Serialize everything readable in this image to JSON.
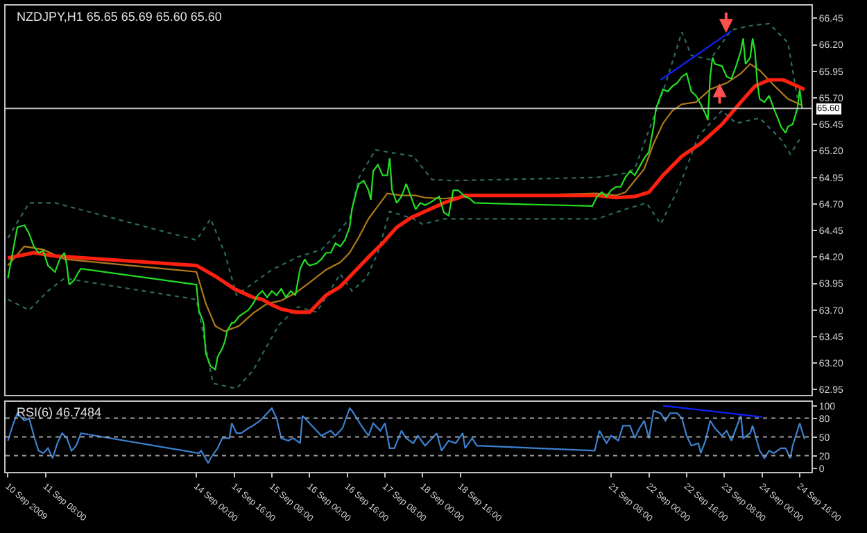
{
  "chart_data": [
    {
      "type": "line",
      "title": "NZDJPY,H1 65.65 65.69 65.60 65.60",
      "xlim": [
        "2009-09-10T15:00",
        "2009-09-24T21:00"
      ],
      "ylim": [
        62.9,
        66.57
      ],
      "yticks": [
        62.95,
        {
          "value": 63.2,
          "label": "63.20"
        },
        63.45,
        {
          "value": 63.7,
          "label": "63.70"
        },
        63.95,
        {
          "value": 64.2,
          "label": "64.20"
        },
        64.45,
        {
          "value": 64.7,
          "label": "64.70"
        },
        64.95,
        {
          "value": 65.2,
          "label": "65.20"
        },
        65.45,
        {
          "value": 65.7,
          "label": "65.70"
        },
        65.95,
        {
          "value": 66.2,
          "label": "66.20"
        },
        66.45
      ],
      "tick_labels": "y",
      "grid": false,
      "marker": "none",
      "ref_lines": [
        {
          "axis": "y",
          "value": 65.6,
          "label": "65.60",
          "color": "#c0c0c0",
          "line_style": "solid"
        }
      ],
      "series": [
        {
          "color": "#2e6b5e",
          "line_style": "dotted",
          "x": [
            "2009-09-10T16:00",
            "2009-09-11T01:00",
            "2009-09-11T12:00",
            "2009-09-14T00:00",
            "2009-09-14T06:00",
            "2009-09-14T12:00",
            "2009-09-14T17:00",
            "2009-09-15T08:00",
            "2009-09-15T19:00",
            "2009-09-16T05:00",
            "2009-09-16T09:00",
            "2009-09-16T17:00",
            "2009-09-16T21:00",
            "2009-09-17T04:00",
            "2009-09-17T09:00",
            "2009-09-17T20:00",
            "2009-09-18T04:00",
            "2009-09-18T13:00",
            "2009-09-21T02:00",
            "2009-09-21T14:00",
            "2009-09-21T18:00",
            "2009-09-22T06:00",
            "2009-09-22T14:00",
            "2009-09-22T18:00",
            "2009-09-23T02:00",
            "2009-09-23T11:00",
            "2009-09-23T19:00",
            "2009-09-24T03:00",
            "2009-09-24T11:00",
            "2009-09-24T15:00"
          ],
          "values": [
            64.38,
            64.71,
            64.71,
            64.36,
            64.56,
            64.24,
            63.84,
            64.08,
            64.2,
            64.27,
            64.36,
            64.56,
            64.95,
            65.21,
            65.19,
            65.15,
            64.93,
            64.92,
            64.95,
            64.99,
            65.03,
            65.76,
            66.32,
            66.1,
            66.06,
            66.34,
            66.38,
            66.4,
            66.22,
            65.7
          ]
        },
        {
          "color": "#2e6b5e",
          "line_style": "dotted",
          "x": [
            "2009-09-10T16:00",
            "2009-09-11T01:00",
            "2009-09-11T09:00",
            "2009-09-11T16:00",
            "2009-09-14T00:00",
            "2009-09-14T07:00",
            "2009-09-14T17:00",
            "2009-09-15T00:00",
            "2009-09-15T11:00",
            "2009-09-15T19:00",
            "2009-09-16T03:00",
            "2009-09-16T13:00",
            "2009-09-16T18:00",
            "2009-09-17T00:00",
            "2009-09-17T05:00",
            "2009-09-17T10:00",
            "2009-09-17T20:00",
            "2009-09-18T00:00",
            "2009-09-18T09:00",
            "2009-09-21T02:00",
            "2009-09-21T14:00",
            "2009-09-21T23:00",
            "2009-09-22T05:00",
            "2009-09-22T13:00",
            "2009-09-22T21:00",
            "2009-09-23T07:00",
            "2009-09-23T13:00",
            "2009-09-23T23:00",
            "2009-09-24T08:00",
            "2009-09-24T12:00",
            "2009-09-24T16:00"
          ],
          "values": [
            63.8,
            63.7,
            63.88,
            64.0,
            63.8,
            63.01,
            62.96,
            63.13,
            63.56,
            63.73,
            63.68,
            64.04,
            63.88,
            64.0,
            64.24,
            64.63,
            64.56,
            64.51,
            64.56,
            64.56,
            64.65,
            64.71,
            64.51,
            64.87,
            65.34,
            65.58,
            65.46,
            65.51,
            65.31,
            65.17,
            65.31
          ]
        },
        {
          "color": "#b07a1a",
          "line_style": "solid",
          "x": [
            "2009-09-10T16:00",
            "2009-09-10T23:00",
            "2009-09-11T07:00",
            "2009-09-11T16:00",
            "2009-09-14T00:00",
            "2009-09-14T04:00",
            "2009-09-14T08:00",
            "2009-09-14T12:00",
            "2009-09-14T18:00",
            "2009-09-15T00:00",
            "2009-09-15T06:00",
            "2009-09-15T12:00",
            "2009-09-15T18:00",
            "2009-09-16T00:00",
            "2009-09-16T07:00",
            "2009-09-16T13:00",
            "2009-09-16T17:00",
            "2009-09-16T21:00",
            "2009-09-17T01:00",
            "2009-09-17T05:00",
            "2009-09-17T09:00",
            "2009-09-17T15:00",
            "2009-09-17T21:00",
            "2009-09-18T01:00",
            "2009-09-18T09:00",
            "2009-09-18T18:00",
            "2009-09-21T02:00",
            "2009-09-21T10:00",
            "2009-09-21T14:00",
            "2009-09-21T18:00",
            "2009-09-21T22:00",
            "2009-09-22T02:00",
            "2009-09-22T06:00",
            "2009-09-22T10:00",
            "2009-09-22T14:00",
            "2009-09-22T20:00",
            "2009-09-23T02:00",
            "2009-09-23T09:00",
            "2009-09-23T15:00",
            "2009-09-23T19:00",
            "2009-09-23T23:00",
            "2009-09-24T05:00",
            "2009-09-24T11:00",
            "2009-09-24T17:00"
          ],
          "values": [
            64.12,
            64.3,
            64.27,
            64.18,
            64.06,
            63.76,
            63.55,
            63.5,
            63.55,
            63.67,
            63.76,
            63.79,
            63.86,
            63.96,
            64.08,
            64.15,
            64.24,
            64.39,
            64.56,
            64.68,
            64.8,
            64.78,
            64.78,
            64.76,
            64.75,
            64.77,
            64.8,
            64.78,
            64.81,
            64.92,
            65.03,
            65.27,
            65.46,
            65.58,
            65.64,
            65.66,
            65.78,
            65.84,
            65.93,
            66.02,
            65.96,
            65.82,
            65.69,
            65.63
          ]
        },
        {
          "color": "#ff2010",
          "line_style": "solid",
          "x": [
            "2009-09-10T16:00",
            "2009-09-11T03:00",
            "2009-09-11T12:00",
            "2009-09-14T00:00",
            "2009-09-14T08:00",
            "2009-09-14T16:00",
            "2009-09-15T00:00",
            "2009-09-15T04:00",
            "2009-09-15T08:00",
            "2009-09-15T12:00",
            "2009-09-15T18:00",
            "2009-09-16T00:00",
            "2009-09-16T07:00",
            "2009-09-16T13:00",
            "2009-09-16T19:00",
            "2009-09-17T01:00",
            "2009-09-17T07:00",
            "2009-09-17T13:00",
            "2009-09-17T19:00",
            "2009-09-18T01:00",
            "2009-09-18T09:00",
            "2009-09-18T18:00",
            "2009-09-21T02:00",
            "2009-09-21T10:00",
            "2009-09-21T18:00",
            "2009-09-22T00:00",
            "2009-09-22T06:00",
            "2009-09-22T14:00",
            "2009-09-22T22:00",
            "2009-09-23T07:00",
            "2009-09-23T15:00",
            "2009-09-23T21:00",
            "2009-09-24T03:00",
            "2009-09-24T09:00",
            "2009-09-24T15:00",
            "2009-09-24T18:00"
          ],
          "values": [
            64.19,
            64.24,
            64.21,
            64.12,
            64.02,
            63.9,
            63.82,
            63.8,
            63.75,
            63.71,
            63.68,
            63.68,
            63.84,
            63.92,
            64.06,
            64.2,
            64.33,
            64.48,
            64.57,
            64.63,
            64.71,
            64.78,
            64.78,
            64.76,
            64.77,
            64.81,
            64.97,
            65.15,
            65.27,
            65.45,
            65.66,
            65.81,
            65.87,
            65.87,
            65.81,
            65.78
          ]
        },
        {
          "color": "#22e022",
          "line_style": "solid",
          "x": [
            "2009-09-10T16:00",
            "2009-09-10T17:00",
            "2009-09-10T20:00",
            "2009-09-10T23:00",
            "2009-09-11T01:00",
            "2009-09-11T03:00",
            "2009-09-11T05:00",
            "2009-09-11T07:00",
            "2009-09-11T09:00",
            "2009-09-11T12:00",
            "2009-09-11T14:00",
            "2009-09-11T16:00",
            "2009-09-11T17:00",
            "2009-09-11T18:00",
            "2009-09-11T20:00",
            "2009-09-11T22:00",
            "2009-09-11T23:00",
            "2009-09-14T00:00",
            "2009-09-14T01:00",
            "2009-09-14T03:00",
            "2009-09-14T04:00",
            "2009-09-14T06:00",
            "2009-09-14T08:00",
            "2009-09-14T09:00",
            "2009-09-14T11:00",
            "2009-09-14T12:00",
            "2009-09-14T13:00",
            "2009-09-14T15:00",
            "2009-09-14T16:00",
            "2009-09-14T18:00",
            "2009-09-14T20:00",
            "2009-09-14T22:00",
            "2009-09-15T00:00",
            "2009-09-15T02:00",
            "2009-09-15T04:00",
            "2009-09-15T06:00",
            "2009-09-15T08:00",
            "2009-09-15T10:00",
            "2009-09-15T12:00",
            "2009-09-15T14:00",
            "2009-09-15T16:00",
            "2009-09-15T18:00",
            "2009-09-15T20:00",
            "2009-09-15T22:00",
            "2009-09-15T23:00",
            "2009-09-16T00:00",
            "2009-09-16T03:00",
            "2009-09-16T05:00",
            "2009-09-16T07:00",
            "2009-09-16T09:00",
            "2009-09-16T11:00",
            "2009-09-16T13:00",
            "2009-09-16T15:00",
            "2009-09-16T17:00",
            "2009-09-16T18:00",
            "2009-09-16T20:00",
            "2009-09-16T21:00",
            "2009-09-16T23:00",
            "2009-09-17T01:00",
            "2009-09-17T02:00",
            "2009-09-17T03:00",
            "2009-09-17T05:00",
            "2009-09-17T07:00",
            "2009-09-17T09:00",
            "2009-09-17T10:00",
            "2009-09-17T11:00",
            "2009-09-17T13:00",
            "2009-09-17T15:00",
            "2009-09-17T16:00",
            "2009-09-17T17:00",
            "2009-09-17T19:00",
            "2009-09-17T21:00",
            "2009-09-17T23:00",
            "2009-09-18T01:00",
            "2009-09-18T03:00",
            "2009-09-18T05:00",
            "2009-09-18T07:00",
            "2009-09-18T09:00",
            "2009-09-18T11:00",
            "2009-09-18T13:00",
            "2009-09-18T15:00",
            "2009-09-18T18:00",
            "2009-09-18T20:00",
            "2009-09-18T22:00",
            "2009-09-21T00:00",
            "2009-09-21T02:00",
            "2009-09-21T04:00",
            "2009-09-21T06:00",
            "2009-09-21T08:00",
            "2009-09-21T10:00",
            "2009-09-21T12:00",
            "2009-09-21T14:00",
            "2009-09-21T16:00",
            "2009-09-21T18:00",
            "2009-09-21T22:00",
            "2009-09-22T00:00",
            "2009-09-22T02:00",
            "2009-09-22T03:00",
            "2009-09-22T04:00",
            "2009-09-22T06:00",
            "2009-09-22T08:00",
            "2009-09-22T10:00",
            "2009-09-22T12:00",
            "2009-09-22T14:00",
            "2009-09-22T16:00",
            "2009-09-22T18:00",
            "2009-09-22T20:00",
            "2009-09-22T22:00",
            "2009-09-23T00:00",
            "2009-09-23T01:00",
            "2009-09-23T02:00",
            "2009-09-23T03:00",
            "2009-09-23T04:00",
            "2009-09-23T07:00",
            "2009-09-23T09:00",
            "2009-09-23T11:00",
            "2009-09-23T13:00",
            "2009-09-23T15:00",
            "2009-09-23T16:00",
            "2009-09-23T17:00",
            "2009-09-23T19:00",
            "2009-09-23T20:00",
            "2009-09-23T21:00",
            "2009-09-23T22:00",
            "2009-09-23T23:00",
            "2009-09-24T01:00",
            "2009-09-24T03:00",
            "2009-09-24T05:00",
            "2009-09-24T07:00",
            "2009-09-24T08:00",
            "2009-09-24T10:00",
            "2009-09-24T11:00",
            "2009-09-24T13:00",
            "2009-09-24T15:00",
            "2009-09-24T16:00",
            "2009-09-24T17:00"
          ],
          "values": [
            64.0,
            64.12,
            64.48,
            64.5,
            64.42,
            64.3,
            64.24,
            64.26,
            64.12,
            64.06,
            64.18,
            64.24,
            64.12,
            63.94,
            63.98,
            64.06,
            64.09,
            63.94,
            63.7,
            63.58,
            63.29,
            63.17,
            63.14,
            63.26,
            63.34,
            63.4,
            63.5,
            63.58,
            63.58,
            63.64,
            63.67,
            63.7,
            63.76,
            63.84,
            63.88,
            63.82,
            63.88,
            63.84,
            63.9,
            63.82,
            63.88,
            63.84,
            64.09,
            64.18,
            64.14,
            64.12,
            64.14,
            64.18,
            64.24,
            64.24,
            64.33,
            64.3,
            64.36,
            64.48,
            64.65,
            64.83,
            64.89,
            64.92,
            64.83,
            64.74,
            65.01,
            65.07,
            64.97,
            64.97,
            65.13,
            64.83,
            64.71,
            64.77,
            64.83,
            64.89,
            64.77,
            64.65,
            64.71,
            64.69,
            64.71,
            64.74,
            64.77,
            64.62,
            64.59,
            64.83,
            64.83,
            64.77,
            64.75,
            64.71,
            64.68,
            64.77,
            64.81,
            64.77,
            64.83,
            64.86,
            64.86,
            64.95,
            65.01,
            64.97,
            65.13,
            65.19,
            65.43,
            65.6,
            65.66,
            65.78,
            65.76,
            65.81,
            65.84,
            65.9,
            65.93,
            65.76,
            65.72,
            65.64,
            65.55,
            65.49,
            65.9,
            66.08,
            66.02,
            66.0,
            65.9,
            65.88,
            66.0,
            66.14,
            66.26,
            66.02,
            66.08,
            66.26,
            66.14,
            65.84,
            65.69,
            65.66,
            65.72,
            65.6,
            65.49,
            65.43,
            65.37,
            65.43,
            65.45,
            65.6,
            65.78,
            65.6
          ]
        },
        {
          "color": "#1020ff",
          "line_style": "solid",
          "x": [
            "2009-09-22T05:00",
            "2009-09-23T11:00"
          ],
          "values": [
            65.87,
            66.33
          ]
        }
      ]
    },
    {
      "type": "line",
      "title": "RSI(6) 46.7484",
      "xlim": [
        "2009-09-10T15:00",
        "2009-09-24T21:00"
      ],
      "xticks": [
        {
          "value": "2009-09-10T16:00",
          "label": "10 Sep 2009"
        },
        {
          "value": "2009-09-11T08:00",
          "label": "11 Sep 08:00"
        },
        {
          "value": "2009-09-14T00:00",
          "label": "14 Sep 00:00"
        },
        {
          "value": "2009-09-14T16:00",
          "label": "14 Sep 16:00"
        },
        {
          "value": "2009-09-15T08:00",
          "label": "15 Sep 08:00"
        },
        {
          "value": "2009-09-16T00:00",
          "label": "16 Sep 00:00"
        },
        {
          "value": "2009-09-16T16:00",
          "label": "16 Sep 16:00"
        },
        {
          "value": "2009-09-17T08:00",
          "label": "17 Sep 08:00"
        },
        {
          "value": "2009-09-18T00:00",
          "label": "18 Sep 00:00"
        },
        {
          "value": "2009-09-18T16:00",
          "label": "18 Sep 16:00"
        },
        {
          "value": "2009-09-21T08:00",
          "label": "21 Sep 08:00"
        },
        {
          "value": "2009-09-22T00:00",
          "label": "22 Sep 00:00"
        },
        {
          "value": "2009-09-22T16:00",
          "label": "22 Sep 16:00"
        },
        {
          "value": "2009-09-23T08:00",
          "label": "23 Sep 08:00"
        },
        {
          "value": "2009-09-24T00:00",
          "label": "24 Sep 00:00"
        },
        {
          "value": "2009-09-24T16:00",
          "label": "24 Sep 16:00"
        }
      ],
      "ylim": [
        -6,
        106
      ],
      "yticks": [
        0,
        20,
        50,
        80,
        100
      ],
      "grid": false,
      "marker": "none",
      "ref_lines": [
        {
          "axis": "y",
          "value": 20,
          "color": "#a0a0a0",
          "line_style": "dotted"
        },
        {
          "axis": "y",
          "value": 50,
          "color": "#a0a0a0",
          "line_style": "dotted"
        },
        {
          "axis": "y",
          "value": 80,
          "color": "#a0a0a0",
          "line_style": "dotted"
        }
      ],
      "series": [
        {
          "color": "#3c82d0",
          "line_style": "solid",
          "x": [
            "2009-09-10T16:00",
            "2009-09-10T18:00",
            "2009-09-10T20:00",
            "2009-09-10T23:00",
            "2009-09-11T01:00",
            "2009-09-11T03:00",
            "2009-09-11T05:00",
            "2009-09-11T07:00",
            "2009-09-11T09:00",
            "2009-09-11T11:00",
            "2009-09-11T13:00",
            "2009-09-11T15:00",
            "2009-09-11T17:00",
            "2009-09-11T19:00",
            "2009-09-11T21:00",
            "2009-09-11T23:00",
            "2009-09-14T01:00",
            "2009-09-14T02:00",
            "2009-09-14T05:00",
            "2009-09-14T06:00",
            "2009-09-14T09:00",
            "2009-09-14T11:00",
            "2009-09-14T14:00",
            "2009-09-14T15:00",
            "2009-09-14T17:00",
            "2009-09-14T19:00",
            "2009-09-14T22:00",
            "2009-09-15T00:00",
            "2009-09-15T03:00",
            "2009-09-15T05:00",
            "2009-09-15T08:00",
            "2009-09-15T10:00",
            "2009-09-15T12:00",
            "2009-09-15T15:00",
            "2009-09-15T17:00",
            "2009-09-15T20:00",
            "2009-09-15T21:00",
            "2009-09-15T23:00",
            "2009-09-16T02:00",
            "2009-09-16T05:00",
            "2009-09-16T09:00",
            "2009-09-16T11:00",
            "2009-09-16T14:00",
            "2009-09-16T17:00",
            "2009-09-16T18:00",
            "2009-09-16T22:00",
            "2009-09-17T01:00",
            "2009-09-17T03:00",
            "2009-09-17T06:00",
            "2009-09-17T08:00",
            "2009-09-17T10:00",
            "2009-09-17T12:00",
            "2009-09-17T15:00",
            "2009-09-17T17:00",
            "2009-09-17T20:00",
            "2009-09-17T22:00",
            "2009-09-18T01:00",
            "2009-09-18T04:00",
            "2009-09-18T06:00",
            "2009-09-18T08:00",
            "2009-09-18T11:00",
            "2009-09-18T14:00",
            "2009-09-18T17:00",
            "2009-09-18T18:00",
            "2009-09-18T21:00",
            "2009-09-18T23:00",
            "2009-09-21T01:00",
            "2009-09-21T03:00",
            "2009-09-21T06:00",
            "2009-09-21T08:00",
            "2009-09-21T11:00",
            "2009-09-21T13:00",
            "2009-09-21T16:00",
            "2009-09-21T18:00",
            "2009-09-21T20:00",
            "2009-09-21T22:00",
            "2009-09-22T00:00",
            "2009-09-22T02:00",
            "2009-09-22T05:00",
            "2009-09-22T07:00",
            "2009-09-22T09:00",
            "2009-09-22T12:00",
            "2009-09-22T14:00",
            "2009-09-22T16:00",
            "2009-09-22T18:00",
            "2009-09-22T21:00",
            "2009-09-22T22:00",
            "2009-09-23T00:00",
            "2009-09-23T02:00",
            "2009-09-23T04:00",
            "2009-09-23T07:00",
            "2009-09-23T09:00",
            "2009-09-23T11:00",
            "2009-09-23T13:00",
            "2009-09-23T15:00",
            "2009-09-23T16:00",
            "2009-09-23T19:00",
            "2009-09-23T20:00",
            "2009-09-23T23:00",
            "2009-09-24T01:00",
            "2009-09-24T03:00",
            "2009-09-24T05:00",
            "2009-09-24T08:00",
            "2009-09-24T10:00",
            "2009-09-24T12:00",
            "2009-09-24T13:00",
            "2009-09-24T16:00",
            "2009-09-24T18:00"
          ],
          "values": [
            44,
            68,
            88,
            76,
            80,
            52,
            28,
            24,
            32,
            16,
            40,
            56,
            48,
            28,
            36,
            56,
            24,
            28,
            8,
            16,
            32,
            48,
            48,
            72,
            56,
            56,
            64,
            68,
            76,
            84,
            96,
            80,
            48,
            44,
            48,
            40,
            84,
            76,
            64,
            52,
            60,
            52,
            64,
            96,
            92,
            68,
            52,
            72,
            60,
            72,
            32,
            32,
            60,
            48,
            40,
            52,
            36,
            48,
            56,
            28,
            44,
            40,
            56,
            32,
            48,
            36,
            28,
            60,
            40,
            52,
            44,
            68,
            68,
            48,
            64,
            76,
            48,
            92,
            88,
            76,
            88,
            88,
            80,
            52,
            36,
            40,
            24,
            44,
            76,
            64,
            52,
            60,
            44,
            64,
            84,
            48,
            56,
            68,
            28,
            16,
            28,
            24,
            32,
            32,
            16,
            36,
            72,
            46.7484
          ]
        },
        {
          "color": "#1020ff",
          "line_style": "solid",
          "x": [
            "2009-09-22T06:00",
            "2009-09-24T00:00"
          ],
          "values": [
            100,
            82
          ]
        }
      ]
    }
  ]
}
